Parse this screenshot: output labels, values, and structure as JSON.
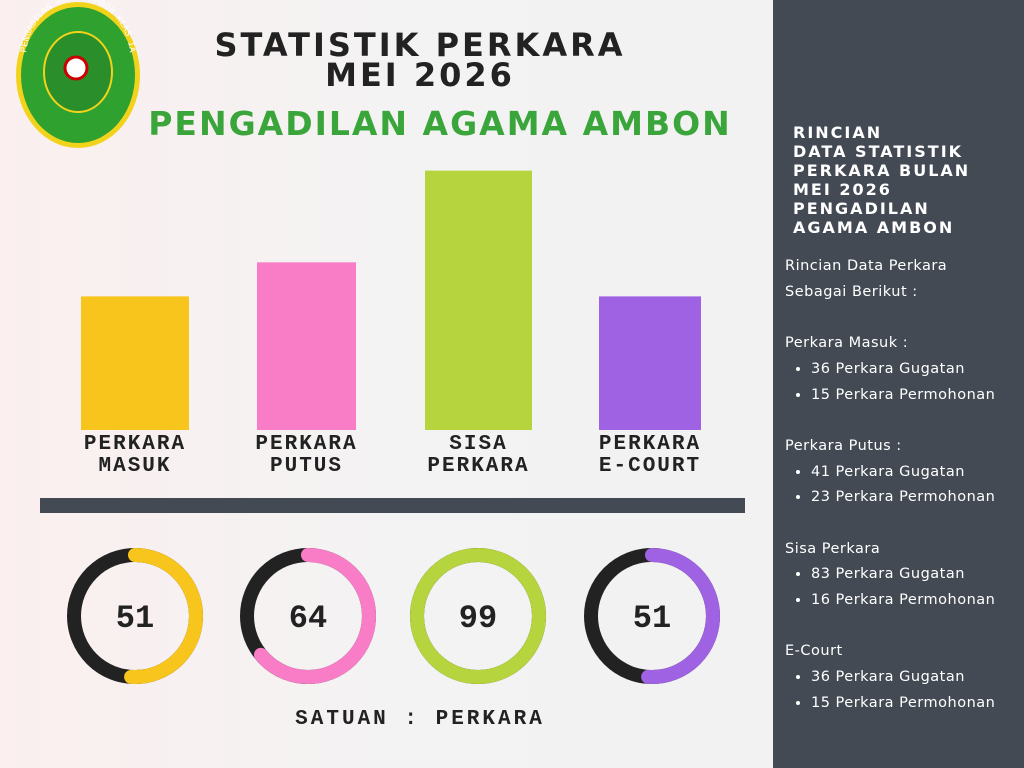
{
  "logo_text": "PENGADILAN AGAMA AMBON KLAS IA",
  "chart_data": {
    "type": "bar",
    "title": "STATISTIK PERKARA",
    "subtitle": "MEI 2026",
    "organization": "PENGADILAN AGAMA AMBON",
    "categories": [
      "PERKARA MASUK",
      "PERKARA PUTUS",
      "SISA PERKARA",
      "PERKARA E-COURT"
    ],
    "values": [
      51,
      64,
      99,
      51
    ],
    "colors": [
      "#f8c51c",
      "#f87dc6",
      "#b5d43e",
      "#9e62e3"
    ],
    "ylim": [
      0,
      100
    ],
    "unit_note": "SATUAN : PERKARA"
  },
  "sidebar": {
    "title_lines": [
      "RINCIAN",
      "DATA STATISTIK",
      "PERKARA BULAN",
      "MEI 2026",
      "PENGADILAN",
      "AGAMA AMBON"
    ],
    "intro_lines": [
      "Rincian Data Perkara",
      "Sebagai Berikut :"
    ],
    "sections": [
      {
        "heading": "Perkara Masuk :",
        "items": [
          "36 Perkara Gugatan",
          "15 Perkara Permohonan"
        ]
      },
      {
        "heading": "Perkara Putus :",
        "items": [
          "41 Perkara Gugatan",
          "23 Perkara Permohonan"
        ]
      },
      {
        "heading": "Sisa Perkara",
        "items": [
          "83 Perkara Gugatan",
          "16 Perkara Permohonan"
        ]
      },
      {
        "heading": "E-Court",
        "items": [
          "36 Perkara Gugatan",
          "15 Perkara Permohonan"
        ]
      }
    ]
  }
}
